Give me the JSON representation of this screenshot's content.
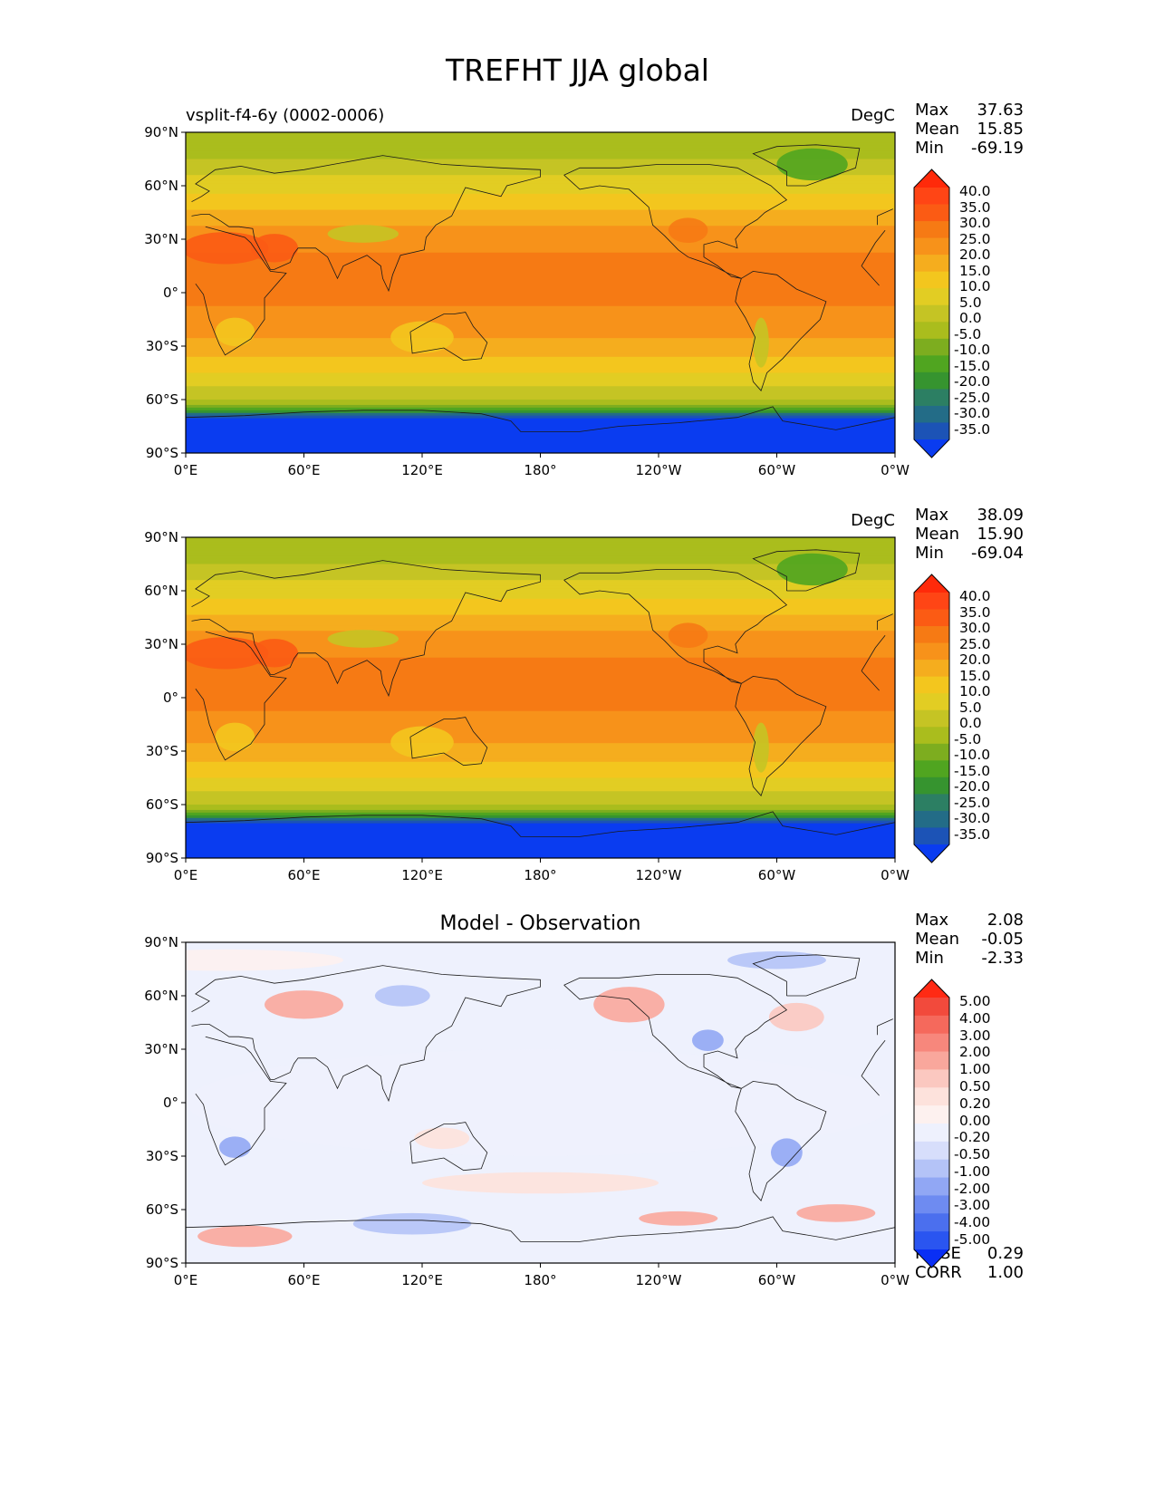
{
  "figure": {
    "title": "TREFHT JJA global"
  },
  "panels": [
    {
      "title_left": "vsplit-f4-6y (0002-0006)",
      "title_center": "",
      "units": "DegC",
      "stats": [
        {
          "name": "Max",
          "value": "37.63"
        },
        {
          "name": "Mean",
          "value": "15.85"
        },
        {
          "name": "Min",
          "value": "-69.19"
        }
      ],
      "extra_stats": [],
      "colorbar": "temperature"
    },
    {
      "title_left": "",
      "title_center": "",
      "units": "DegC",
      "stats": [
        {
          "name": "Max",
          "value": "38.09"
        },
        {
          "name": "Mean",
          "value": "15.90"
        },
        {
          "name": "Min",
          "value": "-69.04"
        }
      ],
      "extra_stats": [],
      "colorbar": "temperature"
    },
    {
      "title_left": "",
      "title_center": "Model - Observation",
      "units": "",
      "stats": [
        {
          "name": "Max",
          "value": "2.08"
        },
        {
          "name": "Mean",
          "value": "-0.05"
        },
        {
          "name": "Min",
          "value": "-2.33"
        }
      ],
      "extra_stats": [
        {
          "name": "RMSE",
          "value": "0.29"
        },
        {
          "name": "CORR",
          "value": "1.00"
        }
      ],
      "colorbar": "difference"
    }
  ],
  "axes": {
    "x_ticks": [
      "0°E",
      "60°E",
      "120°E",
      "180°",
      "120°W",
      "60°W",
      "0°W"
    ],
    "y_ticks": [
      "90°N",
      "60°N",
      "30°N",
      "0°",
      "30°S",
      "60°S",
      "90°S"
    ]
  },
  "colorbars": {
    "temperature": {
      "labels": [
        "40.0",
        "35.0",
        "30.0",
        "25.0",
        "20.0",
        "15.0",
        "10.0",
        "5.0",
        "0.0",
        "-5.0",
        "-10.0",
        "-15.0",
        "-20.0",
        "-25.0",
        "-30.0",
        "-35.0"
      ],
      "colors": [
        "#ff2a0a",
        "#ff4515",
        "#fb5b14",
        "#f67a14",
        "#f7921a",
        "#f5ad1e",
        "#f3c61e",
        "#e2cd23",
        "#c5c424",
        "#aabd1d",
        "#7dad1f",
        "#50a520",
        "#36942f",
        "#2c7f63",
        "#236c87",
        "#1c53b6",
        "#0a3cf0"
      ]
    },
    "difference": {
      "labels": [
        "5.00",
        "4.00",
        "3.00",
        "2.00",
        "1.00",
        "0.50",
        "0.20",
        "0.00",
        "-0.20",
        "-0.50",
        "-1.00",
        "-2.00",
        "-3.00",
        "-4.00",
        "-5.00"
      ],
      "colors": [
        "#ff2a14",
        "#f24a3c",
        "#f5695c",
        "#f7877c",
        "#f9a79c",
        "#fbc8c0",
        "#fde2dc",
        "#fdf1ef",
        "#eef1fd",
        "#d7defb",
        "#b4c3f7",
        "#91a7f4",
        "#6e8bf1",
        "#4b6fee",
        "#2a55f0",
        "#0a2ff5"
      ]
    }
  },
  "chart_data": [
    {
      "type": "heatmap",
      "title": "TREFHT JJA global",
      "subtitle": "vsplit-f4-6y (0002-0006)",
      "units": "DegC",
      "x_ticks": [
        "0°E",
        "60°E",
        "120°E",
        "180°",
        "120°W",
        "60°W",
        "0°W"
      ],
      "y_ticks": [
        "90°N",
        "60°N",
        "30°N",
        "0°",
        "30°S",
        "60°S",
        "90°S"
      ],
      "xlim": [
        0,
        360
      ],
      "ylim": [
        -90,
        90
      ],
      "levels": [
        -35,
        -30,
        -25,
        -20,
        -15,
        -10,
        -5,
        0,
        5,
        10,
        15,
        20,
        25,
        30,
        35,
        40
      ],
      "zonal_profile": {
        "lat": [
          90,
          75,
          60,
          45,
          30,
          15,
          0,
          -15,
          -30,
          -45,
          -60,
          -65,
          -70,
          -90
        ],
        "value": [
          -2,
          0,
          8,
          16,
          24,
          26,
          26,
          24,
          18,
          10,
          0,
          -10,
          -35,
          -40
        ]
      },
      "stats": {
        "Max": 37.63,
        "Mean": 15.85,
        "Min": -69.19
      }
    },
    {
      "type": "heatmap",
      "units": "DegC",
      "x_ticks": [
        "0°E",
        "60°E",
        "120°E",
        "180°",
        "120°W",
        "60°W",
        "0°W"
      ],
      "y_ticks": [
        "90°N",
        "60°N",
        "30°N",
        "0°",
        "30°S",
        "60°S",
        "90°S"
      ],
      "xlim": [
        0,
        360
      ],
      "ylim": [
        -90,
        90
      ],
      "levels": [
        -35,
        -30,
        -25,
        -20,
        -15,
        -10,
        -5,
        0,
        5,
        10,
        15,
        20,
        25,
        30,
        35,
        40
      ],
      "zonal_profile": {
        "lat": [
          90,
          75,
          60,
          45,
          30,
          15,
          0,
          -15,
          -30,
          -45,
          -60,
          -65,
          -70,
          -90
        ],
        "value": [
          -2,
          0,
          8,
          16,
          24,
          26,
          26,
          24,
          18,
          10,
          0,
          -10,
          -35,
          -40
        ]
      },
      "stats": {
        "Max": 38.09,
        "Mean": 15.9,
        "Min": -69.04
      }
    },
    {
      "type": "heatmap",
      "title": "Model - Observation",
      "x_ticks": [
        "0°E",
        "60°E",
        "120°E",
        "180°",
        "120°W",
        "60°W",
        "0°W"
      ],
      "y_ticks": [
        "90°N",
        "60°N",
        "30°N",
        "0°",
        "30°S",
        "60°S",
        "90°S"
      ],
      "xlim": [
        0,
        360
      ],
      "ylim": [
        -90,
        90
      ],
      "levels": [
        -5,
        -4,
        -3,
        -2,
        -1,
        -0.5,
        -0.2,
        0,
        0.2,
        0.5,
        1,
        2,
        3,
        4,
        5
      ],
      "stats": {
        "Max": 2.08,
        "Mean": -0.05,
        "Min": -2.33,
        "RMSE": 0.29,
        "CORR": 1.0
      }
    }
  ]
}
